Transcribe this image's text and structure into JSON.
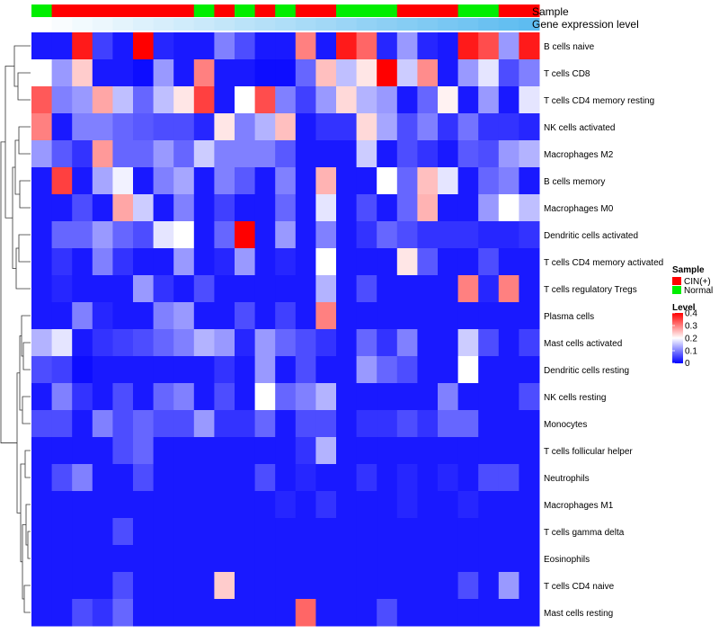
{
  "chart_data": {
    "type": "heatmap",
    "title": "",
    "xlabel": "",
    "ylabel": "",
    "annotation_labels": {
      "sample": "Sample",
      "gene_expression": "Gene expression level"
    },
    "legend_sample": {
      "title": "Sample",
      "entries": [
        {
          "label": "CIN(+)",
          "color": "#ff0000"
        },
        {
          "label": "Normal",
          "color": "#00ee00"
        }
      ]
    },
    "legend_level": {
      "title": "Level",
      "ticks": [
        "0.4",
        "0.3",
        "0.2",
        "0.1",
        "0"
      ],
      "tick_values": [
        0.4,
        0.3,
        0.2,
        0.1,
        0
      ],
      "range": [
        0,
        0.4
      ],
      "colors": {
        "low": "#0000ff",
        "mid": "#ffffff",
        "high": "#ff0000"
      }
    },
    "sample_groups": [
      "Normal",
      "CIN(+)",
      "CIN(+)",
      "CIN(+)",
      "CIN(+)",
      "CIN(+)",
      "CIN(+)",
      "CIN(+)",
      "Normal",
      "CIN(+)",
      "Normal",
      "CIN(+)",
      "Normal",
      "CIN(+)",
      "CIN(+)",
      "Normal",
      "Normal",
      "Normal",
      "CIN(+)",
      "CIN(+)",
      "CIN(+)",
      "Normal",
      "Normal",
      "CIN(+)",
      "CIN(+)"
    ],
    "gene_expression_level": [
      0,
      0.04,
      0.08,
      0.12,
      0.17,
      0.21,
      0.25,
      0.29,
      0.33,
      0.37,
      0.42,
      0.46,
      0.5,
      0.54,
      0.58,
      0.62,
      0.67,
      0.71,
      0.75,
      0.79,
      0.83,
      0.87,
      0.92,
      0.96,
      1
    ],
    "rows": [
      "B cells naive",
      "T cells CD8",
      "T cells CD4 memory resting",
      "NK cells activated",
      "Macrophages M2",
      "B cells memory",
      "Macrophages M0",
      "Dendritic cells activated",
      "T cells CD4 memory activated",
      "T cells regulatory  Tregs",
      "Plasma cells",
      "Mast cells activated",
      "Dendritic cells resting",
      "NK cells resting",
      "Monocytes",
      "T cells follicular helper",
      "Neutrophils",
      "Macrophages M1",
      "T cells gamma delta",
      "Eosinophils",
      "T cells CD4 naive",
      "Mast cells resting"
    ],
    "values": [
      [
        0.02,
        0.02,
        0.38,
        0.05,
        0.02,
        0.4,
        0.03,
        0.02,
        0.02,
        0.1,
        0.06,
        0.02,
        0.02,
        0.3,
        0.02,
        0.38,
        0.32,
        0.03,
        0.12,
        0.03,
        0.02,
        0.38,
        0.34,
        0.12,
        0.38
      ],
      [
        0.2,
        0.12,
        0.24,
        0.02,
        0.02,
        0.01,
        0.12,
        0.02,
        0.3,
        0.02,
        0.02,
        0.01,
        0.01,
        0.08,
        0.25,
        0.15,
        0.22,
        0.4,
        0.16,
        0.29,
        0.02,
        0.12,
        0.18,
        0.06,
        0.1
      ],
      [
        0.33,
        0.1,
        0.12,
        0.27,
        0.15,
        0.08,
        0.15,
        0.22,
        0.35,
        0.02,
        0.2,
        0.34,
        0.1,
        0.05,
        0.12,
        0.23,
        0.14,
        0.12,
        0.02,
        0.08,
        0.21,
        0.02,
        0.12,
        0.02,
        0.18
      ],
      [
        0.3,
        0.02,
        0.1,
        0.1,
        0.08,
        0.07,
        0.06,
        0.06,
        0.03,
        0.22,
        0.1,
        0.14,
        0.25,
        0.02,
        0.04,
        0.04,
        0.23,
        0.13,
        0.06,
        0.1,
        0.04,
        0.09,
        0.04,
        0.04,
        0.03
      ],
      [
        0.12,
        0.07,
        0.04,
        0.28,
        0.08,
        0.08,
        0.12,
        0.08,
        0.16,
        0.1,
        0.1,
        0.1,
        0.07,
        0.02,
        0.02,
        0.02,
        0.16,
        0.02,
        0.06,
        0.04,
        0.02,
        0.07,
        0.06,
        0.12,
        0.14
      ],
      [
        0.02,
        0.35,
        0.02,
        0.13,
        0.19,
        0.02,
        0.1,
        0.13,
        0.02,
        0.1,
        0.07,
        0.02,
        0.1,
        0.02,
        0.26,
        0.02,
        0.02,
        0.2,
        0.08,
        0.25,
        0.18,
        0.02,
        0.08,
        0.1,
        0.02
      ],
      [
        0.02,
        0.02,
        0.06,
        0.02,
        0.27,
        0.16,
        0.02,
        0.1,
        0.02,
        0.05,
        0.02,
        0.02,
        0.08,
        0.02,
        0.18,
        0.02,
        0.06,
        0.02,
        0.08,
        0.26,
        0.02,
        0.02,
        0.12,
        0.2,
        0.15
      ],
      [
        0.02,
        0.08,
        0.08,
        0.12,
        0.08,
        0.06,
        0.18,
        0.2,
        0.02,
        0.08,
        0.4,
        0.02,
        0.12,
        0.02,
        0.1,
        0.02,
        0.04,
        0.08,
        0.06,
        0.04,
        0.04,
        0.04,
        0.03,
        0.03,
        0.04
      ],
      [
        0.02,
        0.04,
        0.02,
        0.1,
        0.04,
        0.02,
        0.02,
        0.12,
        0.02,
        0.03,
        0.12,
        0.02,
        0.03,
        0.02,
        0.2,
        0.02,
        0.02,
        0.02,
        0.22,
        0.07,
        0.02,
        0.02,
        0.06,
        0.02,
        0.02
      ],
      [
        0.02,
        0.03,
        0.02,
        0.02,
        0.02,
        0.12,
        0.04,
        0.02,
        0.06,
        0.02,
        0.02,
        0.02,
        0.02,
        0.02,
        0.14,
        0.02,
        0.06,
        0.02,
        0.02,
        0.02,
        0.02,
        0.3,
        0.03,
        0.3,
        0.02
      ],
      [
        0.02,
        0.02,
        0.1,
        0.03,
        0.02,
        0.02,
        0.1,
        0.12,
        0.02,
        0.02,
        0.06,
        0.02,
        0.05,
        0.02,
        0.3,
        0.02,
        0.02,
        0.02,
        0.02,
        0.02,
        0.02,
        0.02,
        0.02,
        0.02,
        0.02
      ],
      [
        0.14,
        0.18,
        0.02,
        0.04,
        0.05,
        0.06,
        0.08,
        0.1,
        0.14,
        0.12,
        0.03,
        0.12,
        0.08,
        0.06,
        0.04,
        0.02,
        0.08,
        0.04,
        0.1,
        0.02,
        0.02,
        0.16,
        0.06,
        0.02,
        0.05
      ],
      [
        0.06,
        0.05,
        0.01,
        0.02,
        0.02,
        0.02,
        0.02,
        0.02,
        0.02,
        0.04,
        0.02,
        0.12,
        0.02,
        0.06,
        0.02,
        0.02,
        0.12,
        0.08,
        0.06,
        0.02,
        0.02,
        0.2,
        0.02,
        0.02,
        0.02
      ],
      [
        0.02,
        0.1,
        0.04,
        0.02,
        0.06,
        0.02,
        0.08,
        0.1,
        0.02,
        0.06,
        0.02,
        0.2,
        0.08,
        0.1,
        0.14,
        0.02,
        0.02,
        0.02,
        0.02,
        0.02,
        0.1,
        0.02,
        0.02,
        0.02,
        0.06
      ],
      [
        0.06,
        0.06,
        0.02,
        0.1,
        0.06,
        0.08,
        0.06,
        0.06,
        0.12,
        0.04,
        0.04,
        0.08,
        0.02,
        0.06,
        0.06,
        0.02,
        0.04,
        0.04,
        0.06,
        0.04,
        0.08,
        0.08,
        0.02,
        0.02,
        0.02
      ],
      [
        0.02,
        0.02,
        0.02,
        0.02,
        0.06,
        0.08,
        0.02,
        0.02,
        0.02,
        0.02,
        0.02,
        0.02,
        0.02,
        0.04,
        0.14,
        0.02,
        0.02,
        0.02,
        0.02,
        0.02,
        0.02,
        0.02,
        0.02,
        0.02,
        0.02
      ],
      [
        0.02,
        0.06,
        0.1,
        0.02,
        0.02,
        0.06,
        0.02,
        0.02,
        0.02,
        0.02,
        0.02,
        0.06,
        0.02,
        0.03,
        0.02,
        0.02,
        0.04,
        0.02,
        0.03,
        0.02,
        0.03,
        0.02,
        0.06,
        0.06,
        0.02
      ],
      [
        0.02,
        0.02,
        0.02,
        0.02,
        0.02,
        0.02,
        0.02,
        0.02,
        0.02,
        0.02,
        0.02,
        0.02,
        0.03,
        0.02,
        0.04,
        0.02,
        0.02,
        0.02,
        0.03,
        0.02,
        0.02,
        0.03,
        0.02,
        0.02,
        0.02
      ],
      [
        0.02,
        0.02,
        0.02,
        0.02,
        0.06,
        0.02,
        0.02,
        0.02,
        0.02,
        0.02,
        0.02,
        0.02,
        0.02,
        0.02,
        0.02,
        0.02,
        0.02,
        0.02,
        0.02,
        0.02,
        0.02,
        0.02,
        0.02,
        0.02,
        0.02
      ],
      [
        0.02,
        0.02,
        0.02,
        0.02,
        0.02,
        0.02,
        0.02,
        0.02,
        0.02,
        0.02,
        0.02,
        0.02,
        0.02,
        0.02,
        0.02,
        0.02,
        0.02,
        0.02,
        0.02,
        0.02,
        0.02,
        0.02,
        0.02,
        0.02,
        0.02
      ],
      [
        0.02,
        0.02,
        0.02,
        0.02,
        0.06,
        0.02,
        0.02,
        0.02,
        0.02,
        0.24,
        0.02,
        0.02,
        0.02,
        0.02,
        0.02,
        0.02,
        0.02,
        0.02,
        0.02,
        0.02,
        0.02,
        0.06,
        0.02,
        0.12,
        0.02
      ],
      [
        0.02,
        0.02,
        0.06,
        0.04,
        0.08,
        0.02,
        0.02,
        0.02,
        0.02,
        0.02,
        0.02,
        0.02,
        0.02,
        0.32,
        0.02,
        0.02,
        0.02,
        0.06,
        0.02,
        0.02,
        0.02,
        0.02,
        0.02,
        0.02,
        0.02
      ]
    ]
  }
}
